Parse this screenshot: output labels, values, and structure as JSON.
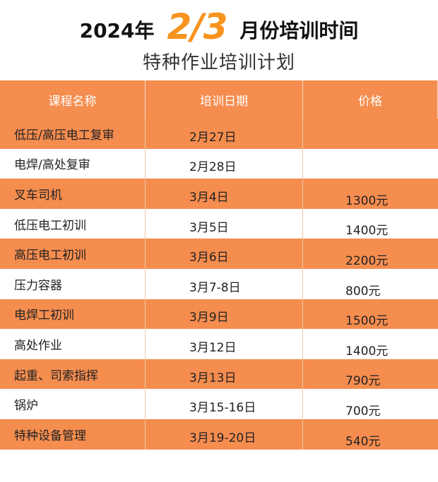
{
  "header": {
    "year": "2024年",
    "month": "2/3",
    "title_tail": "月份培训时间",
    "subtitle": "特种作业培训计划"
  },
  "table": {
    "columns": [
      "课程名称",
      "培训日期",
      "价格"
    ],
    "rows": [
      {
        "name": "低压/高压电工复审",
        "date": "2月27日",
        "price": ""
      },
      {
        "name": "电焊/高处复审",
        "date": "2月28日",
        "price": ""
      },
      {
        "name": "叉车司机",
        "date": "3月4日",
        "price": "1300元"
      },
      {
        "name": "低压电工初训",
        "date": "3月5日",
        "price": "1400元"
      },
      {
        "name": "高压电工初训",
        "date": "3月6日",
        "price": "2200元"
      },
      {
        "name": "压力容器",
        "date": "3月7-8日",
        "price": "800元"
      },
      {
        "name": "电焊工初训",
        "date": "3月9日",
        "price": "1500元"
      },
      {
        "name": "高处作业",
        "date": "3月12日",
        "price": "1400元"
      },
      {
        "name": "起重、司索指挥",
        "date": "3月13日",
        "price": "790元"
      },
      {
        "name": "锅炉",
        "date": "3月15-16日",
        "price": "700元"
      },
      {
        "name": "特种设备管理",
        "date": "3月19-20日",
        "price": "540元"
      }
    ]
  },
  "colors": {
    "accent": "#f58d4f",
    "month_highlight": "#f7931e"
  }
}
